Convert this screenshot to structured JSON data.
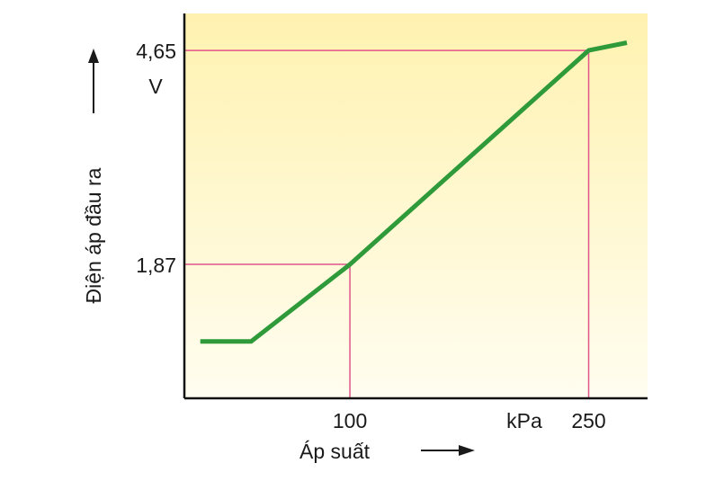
{
  "chart_data": {
    "type": "line",
    "ylabel": "Điện áp đầu ra",
    "xlabel": "Áp suất",
    "x_unit": "kPa",
    "y_unit": "V",
    "x_ticks": [
      {
        "value": 100,
        "label": "100"
      },
      {
        "value": 250,
        "label": "250"
      }
    ],
    "y_ticks": [
      {
        "value": 1.87,
        "label": "1,87"
      },
      {
        "value": 4.65,
        "label": "4,65"
      }
    ],
    "series": [
      {
        "color": "#2e9a3a",
        "x": [
          6,
          38,
          100,
          250,
          274
        ],
        "y": [
          0.87,
          0.87,
          1.87,
          4.65,
          4.75
        ]
      }
    ],
    "reference_lines": [
      {
        "x": 100,
        "y": 1.87
      },
      {
        "x": 250,
        "y": 4.65
      }
    ],
    "xlim": [
      -4,
      287
    ],
    "ylim": [
      0.13,
      5.13
    ],
    "grid": false,
    "background_gradient": [
      "#fff2b0",
      "#fffdf0"
    ],
    "reference_color": "#e0558a"
  }
}
